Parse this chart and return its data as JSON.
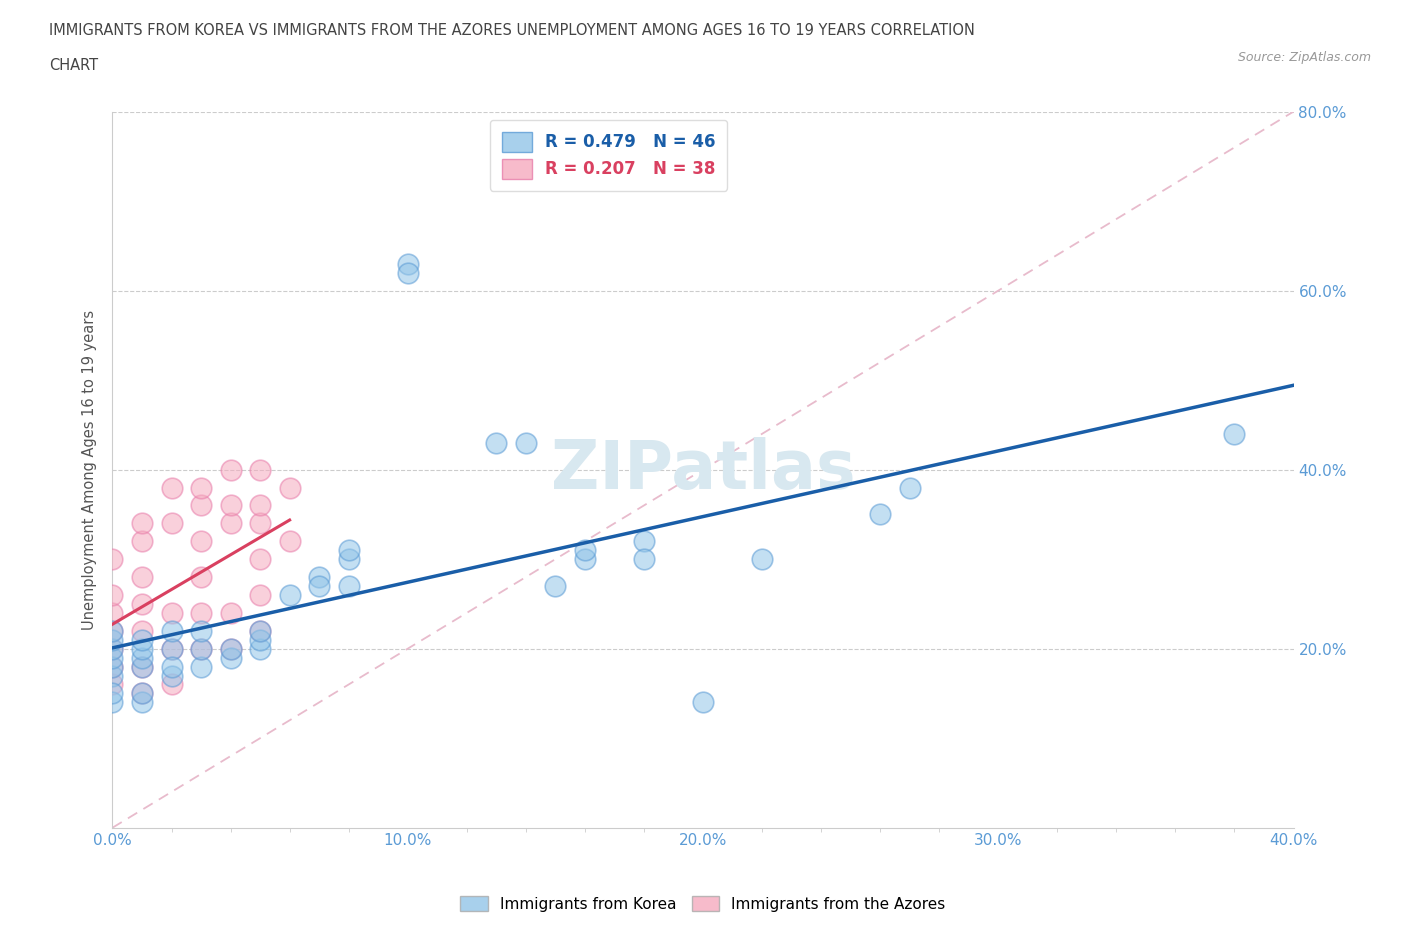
{
  "title_line1": "IMMIGRANTS FROM KOREA VS IMMIGRANTS FROM THE AZORES UNEMPLOYMENT AMONG AGES 16 TO 19 YEARS CORRELATION",
  "title_line2": "CHART",
  "source": "Source: ZipAtlas.com",
  "ylabel": "Unemployment Among Ages 16 to 19 years",
  "xlim": [
    0.0,
    0.4
  ],
  "ylim": [
    0.0,
    0.8
  ],
  "xtick_labels": [
    "0.0%",
    "",
    "",
    "",
    "",
    "10.0%",
    "",
    "",
    "",
    "",
    "20.0%",
    "",
    "",
    "",
    "",
    "30.0%",
    "",
    "",
    "",
    "",
    "40.0%"
  ],
  "xtick_values": [
    0.0,
    0.02,
    0.04,
    0.06,
    0.08,
    0.1,
    0.12,
    0.14,
    0.16,
    0.18,
    0.2,
    0.22,
    0.24,
    0.26,
    0.28,
    0.3,
    0.32,
    0.34,
    0.36,
    0.38,
    0.4
  ],
  "xtick_major_labels": [
    "0.0%",
    "10.0%",
    "20.0%",
    "30.0%",
    "40.0%"
  ],
  "xtick_major_values": [
    0.0,
    0.1,
    0.2,
    0.3,
    0.4
  ],
  "ytick_labels": [
    "20.0%",
    "40.0%",
    "60.0%",
    "80.0%"
  ],
  "ytick_values": [
    0.2,
    0.4,
    0.6,
    0.8
  ],
  "korea_R": 0.479,
  "korea_N": 46,
  "azores_R": 0.207,
  "azores_N": 38,
  "korea_color": "#92C5E8",
  "azores_color": "#F5AABE",
  "korea_edge_color": "#5B9BD5",
  "azores_edge_color": "#E87DAA",
  "korea_line_color": "#1A5EA8",
  "azores_line_color": "#D94060",
  "diag_line_color": "#E8AABB",
  "watermark_color": "#D8E8F0",
  "korea_x": [
    0.0,
    0.0,
    0.0,
    0.0,
    0.0,
    0.0,
    0.0,
    0.0,
    0.01,
    0.01,
    0.01,
    0.01,
    0.01,
    0.01,
    0.02,
    0.02,
    0.02,
    0.02,
    0.03,
    0.03,
    0.03,
    0.04,
    0.04,
    0.05,
    0.05,
    0.05,
    0.06,
    0.07,
    0.07,
    0.08,
    0.08,
    0.08,
    0.1,
    0.1,
    0.13,
    0.14,
    0.15,
    0.16,
    0.16,
    0.18,
    0.18,
    0.2,
    0.22,
    0.26,
    0.27,
    0.38
  ],
  "korea_y": [
    0.17,
    0.18,
    0.19,
    0.2,
    0.21,
    0.22,
    0.14,
    0.15,
    0.18,
    0.19,
    0.2,
    0.21,
    0.14,
    0.15,
    0.17,
    0.2,
    0.22,
    0.18,
    0.18,
    0.2,
    0.22,
    0.19,
    0.2,
    0.2,
    0.21,
    0.22,
    0.26,
    0.28,
    0.27,
    0.27,
    0.3,
    0.31,
    0.63,
    0.62,
    0.43,
    0.43,
    0.27,
    0.3,
    0.31,
    0.32,
    0.3,
    0.14,
    0.3,
    0.35,
    0.38,
    0.44
  ],
  "azores_x": [
    0.0,
    0.0,
    0.0,
    0.0,
    0.0,
    0.0,
    0.0,
    0.01,
    0.01,
    0.01,
    0.01,
    0.02,
    0.02,
    0.02,
    0.03,
    0.03,
    0.04,
    0.04,
    0.05,
    0.05,
    0.01,
    0.01,
    0.03,
    0.03,
    0.05,
    0.06,
    0.01,
    0.02,
    0.04,
    0.05,
    0.03,
    0.04,
    0.05,
    0.06,
    0.02,
    0.03,
    0.04,
    0.05
  ],
  "azores_y": [
    0.16,
    0.18,
    0.2,
    0.22,
    0.24,
    0.26,
    0.3,
    0.15,
    0.18,
    0.22,
    0.25,
    0.16,
    0.2,
    0.24,
    0.2,
    0.24,
    0.2,
    0.24,
    0.22,
    0.26,
    0.28,
    0.32,
    0.28,
    0.32,
    0.3,
    0.32,
    0.34,
    0.34,
    0.34,
    0.34,
    0.36,
    0.36,
    0.36,
    0.38,
    0.38,
    0.38,
    0.4,
    0.4
  ]
}
